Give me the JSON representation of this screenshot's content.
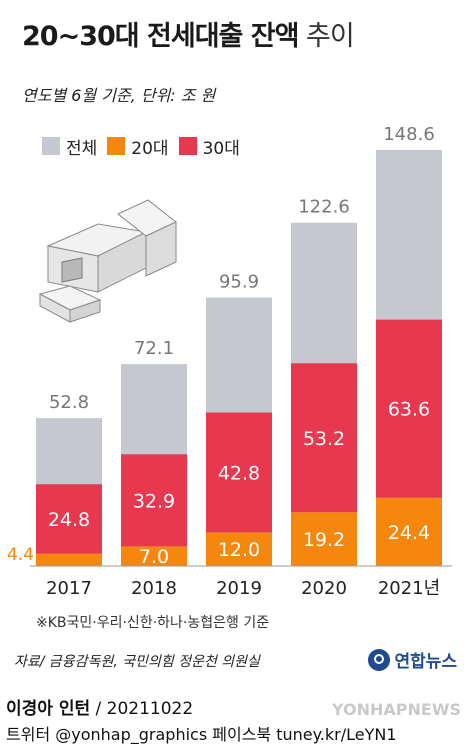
{
  "header": {
    "title_bold": "20~30대 전세대출 잔액",
    "title_light": " 추이",
    "subtitle": "연도별 6월 기준, 단위: 조 원"
  },
  "legend": [
    {
      "label": "전체",
      "color": "#c5c9cf"
    },
    {
      "label": "20대",
      "color": "#f5870f"
    },
    {
      "label": "30대",
      "color": "#e8384f"
    }
  ],
  "chart_data": {
    "type": "bar",
    "categories": [
      "2017",
      "2018",
      "2019",
      "2020",
      "2021년"
    ],
    "series": [
      {
        "name": "전체",
        "values": [
          52.8,
          72.1,
          95.9,
          122.6,
          148.6
        ]
      },
      {
        "name": "20대",
        "values": [
          4.4,
          7.0,
          12.0,
          19.2,
          24.4
        ]
      },
      {
        "name": "30대",
        "values": [
          24.8,
          32.9,
          42.8,
          53.2,
          63.6
        ]
      }
    ],
    "value_labels": {
      "total": [
        "52.8",
        "72.1",
        "95.9",
        "122.6",
        "148.6"
      ],
      "age20": [
        "4.4",
        "7.0",
        "12.0",
        "19.2",
        "24.4"
      ],
      "age30": [
        "24.8",
        "32.9",
        "42.8",
        "53.2",
        "63.6"
      ]
    },
    "colors": {
      "total": "#c5c9cf",
      "age20": "#f5870f",
      "age30": "#e8384f"
    },
    "legend_position": "top-left",
    "grid": false
  },
  "footer": {
    "footnote": "※KB국민·우리·신한·하나·농협은행 기준",
    "source": "자료/ 금융감독원, 국민의힘 정운천 의원실",
    "brand": "연합뉴스",
    "author_name": "이경아 인턴",
    "author_date": " / 20211022",
    "social": "트위터 @yonhap_graphics  페이스북 tuney.kr/LeYN1",
    "watermark": "YONHAPNEWS"
  }
}
